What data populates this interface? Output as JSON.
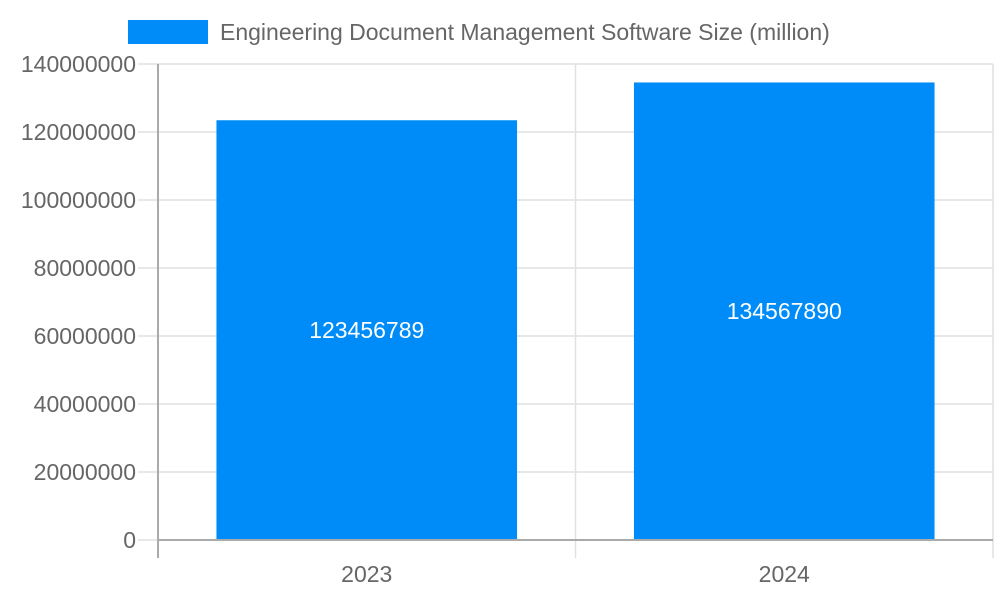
{
  "chart_data": {
    "type": "bar",
    "categories": [
      "2023",
      "2024"
    ],
    "series": [
      {
        "name": "Engineering Document Management Software Size (million)",
        "values": [
          123456789,
          134567890
        ],
        "color": "#008cf8"
      }
    ],
    "data_labels": [
      "123456789",
      "134567890"
    ],
    "ylim": [
      0,
      140000000
    ],
    "yticks": [
      0,
      20000000,
      40000000,
      60000000,
      80000000,
      100000000,
      120000000,
      140000000
    ],
    "ytick_labels": [
      "0",
      "20000000",
      "40000000",
      "60000000",
      "80000000",
      "100000000",
      "120000000",
      "140000000"
    ],
    "grid": true,
    "legend": "top",
    "title": "",
    "xlabel": "",
    "ylabel": ""
  }
}
